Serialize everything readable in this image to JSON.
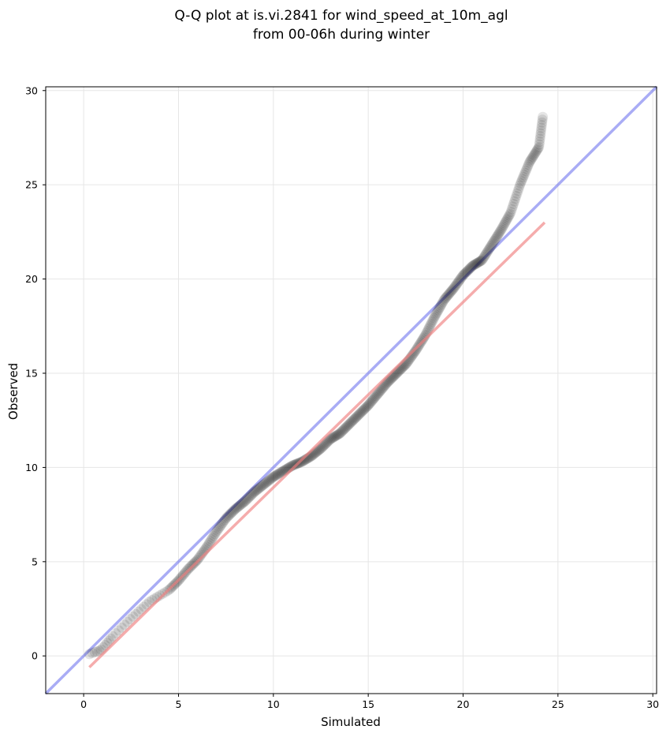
{
  "chart_data": {
    "type": "scatter",
    "title_lines": [
      "Q-Q plot at is.vi.2841 for wind_speed_at_10m_agl",
      "from 00-06h during winter"
    ],
    "xlabel": "Simulated",
    "ylabel": "Observed",
    "xlim": [
      -2,
      30.2
    ],
    "ylim": [
      -2,
      30.2
    ],
    "xticks": [
      0,
      5,
      10,
      15,
      20,
      25,
      30
    ],
    "yticks": [
      0,
      5,
      10,
      15,
      20,
      25,
      30
    ],
    "grid": true,
    "colors": {
      "points": "#000000",
      "identity_line": "#6f74ee",
      "fit_line": "#f07f80",
      "grid": "#e6e6e6"
    },
    "identity_line": {
      "x": [
        -2,
        30.2
      ],
      "y": [
        -2,
        30.2
      ]
    },
    "fit_line": {
      "x": [
        0.3,
        24.3
      ],
      "y": [
        -0.6,
        23.0
      ]
    },
    "qq_anchors": {
      "simulated": [
        0.3,
        0.9,
        1.5,
        2.5,
        3.5,
        4.5,
        5.0,
        5.5,
        6.0,
        6.5,
        7.0,
        7.5,
        8.0,
        8.5,
        9.0,
        9.5,
        10.0,
        10.5,
        11.0,
        11.5,
        12.0,
        12.5,
        13.0,
        13.5,
        14.0,
        14.5,
        15.0,
        15.5,
        16.0,
        16.5,
        17.0,
        17.5,
        18.0,
        18.5,
        19.0,
        19.5,
        20.0,
        20.5,
        21.0,
        21.5,
        22.0,
        22.5,
        23.0,
        23.5,
        24.0,
        24.2
      ],
      "observed": [
        0.1,
        0.3,
        1.0,
        2.0,
        2.9,
        3.5,
        4.0,
        4.6,
        5.1,
        5.8,
        6.6,
        7.3,
        7.8,
        8.2,
        8.7,
        9.1,
        9.5,
        9.8,
        10.1,
        10.3,
        10.6,
        11.0,
        11.5,
        11.8,
        12.3,
        12.8,
        13.3,
        13.9,
        14.5,
        15.0,
        15.5,
        16.2,
        17.0,
        18.0,
        18.9,
        19.5,
        20.2,
        20.7,
        21.0,
        21.8,
        22.6,
        23.5,
        25.0,
        26.2,
        27.0,
        28.6
      ],
      "count": 420
    }
  }
}
